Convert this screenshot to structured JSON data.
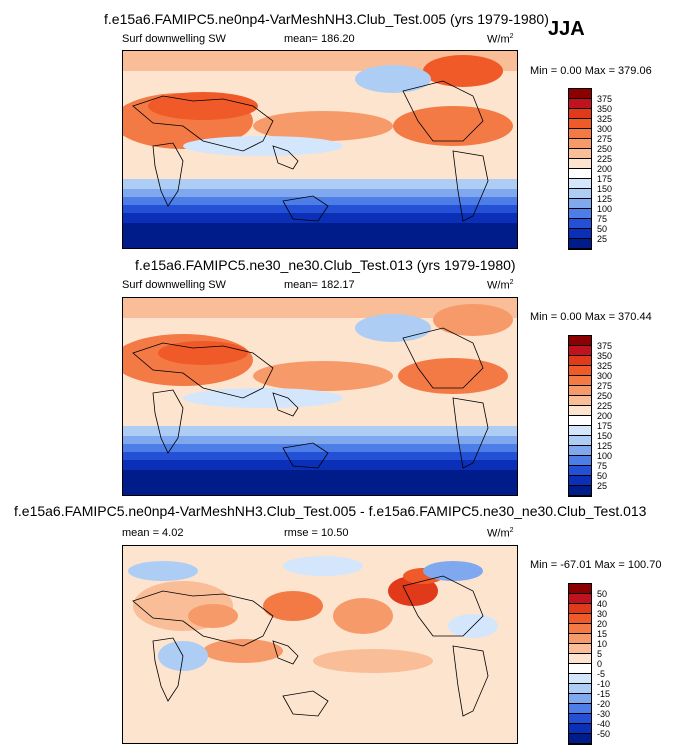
{
  "season": "JJA",
  "panels": [
    {
      "title": "f.e15a6.FAMIPC5.ne0np4-VarMeshNH3.Club_Test.005 (yrs 1979-1980)",
      "left_label": "Surf downwelling SW",
      "center_label": "mean= 186.20",
      "units": "W/m",
      "units_sup": "2",
      "minmax": "Min =   0.00 Max = 379.06",
      "levels": [
        "375",
        "350",
        "325",
        "300",
        "275",
        "250",
        "225",
        "200",
        "175",
        "150",
        "125",
        "100",
        "75",
        "50",
        "25"
      ],
      "colors": [
        "#8b0000",
        "#c1121f",
        "#e03a1b",
        "#f05a28",
        "#f47a45",
        "#f79a6a",
        "#f9bd97",
        "#fde4cf",
        "#ffffff",
        "#d4e6fb",
        "#adcdf5",
        "#7fa8ef",
        "#4d7de6",
        "#2450d6",
        "#0c2fb8",
        "#001b8a"
      ]
    },
    {
      "title": "f.e15a6.FAMIPC5.ne30_ne30.Club_Test.013 (yrs 1979-1980)",
      "left_label": "Surf downwelling SW",
      "center_label": "mean= 182.17",
      "units": "W/m",
      "units_sup": "2",
      "minmax": "Min =   0.00 Max = 370.44",
      "levels": [
        "375",
        "350",
        "325",
        "300",
        "275",
        "250",
        "225",
        "200",
        "175",
        "150",
        "125",
        "100",
        "75",
        "50",
        "25"
      ],
      "colors": [
        "#8b0000",
        "#c1121f",
        "#e03a1b",
        "#f05a28",
        "#f47a45",
        "#f79a6a",
        "#f9bd97",
        "#fde4cf",
        "#ffffff",
        "#d4e6fb",
        "#adcdf5",
        "#7fa8ef",
        "#4d7de6",
        "#2450d6",
        "#0c2fb8",
        "#001b8a"
      ]
    },
    {
      "title": "f.e15a6.FAMIPC5.ne0np4-VarMeshNH3.Club_Test.005 - f.e15a6.FAMIPC5.ne30_ne30.Club_Test.013",
      "left_label": "mean =   4.02",
      "center_label": "rmse =  10.50",
      "units": "W/m",
      "units_sup": "2",
      "minmax": "Min = -67.01 Max = 100.70",
      "levels": [
        "50",
        "40",
        "30",
        "20",
        "15",
        "10",
        "5",
        "0",
        "-5",
        "-10",
        "-15",
        "-20",
        "-30",
        "-40",
        "-50"
      ],
      "colors": [
        "#8b0000",
        "#c1121f",
        "#e03a1b",
        "#f05a28",
        "#f47a45",
        "#f79a6a",
        "#f9bd97",
        "#fde4cf",
        "#ffffff",
        "#d4e6fb",
        "#adcdf5",
        "#7fa8ef",
        "#4d7de6",
        "#2450d6",
        "#0c2fb8",
        "#001b8a"
      ]
    }
  ]
}
